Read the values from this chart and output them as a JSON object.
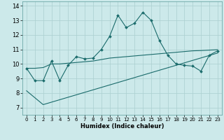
{
  "xlabel": "Humidex (Indice chaleur)",
  "xlim": [
    -0.5,
    23.5
  ],
  "ylim": [
    6.5,
    14.3
  ],
  "xticks": [
    0,
    1,
    2,
    3,
    4,
    5,
    6,
    7,
    8,
    9,
    10,
    11,
    12,
    13,
    14,
    15,
    16,
    17,
    18,
    19,
    20,
    21,
    22,
    23
  ],
  "yticks": [
    7,
    8,
    9,
    10,
    11,
    12,
    13,
    14
  ],
  "background_color": "#cce9ea",
  "grid_color": "#aacfcf",
  "line_color": "#1a6b6b",
  "main_x": [
    0,
    1,
    2,
    3,
    4,
    5,
    6,
    7,
    8,
    9,
    10,
    11,
    12,
    13,
    14,
    15,
    16,
    17,
    18,
    19,
    20,
    21,
    22,
    23
  ],
  "main_y": [
    9.7,
    8.85,
    8.85,
    10.2,
    8.85,
    9.9,
    10.5,
    10.35,
    10.4,
    11.0,
    11.9,
    13.35,
    12.5,
    12.8,
    13.55,
    13.0,
    11.6,
    10.6,
    10.0,
    9.9,
    9.85,
    9.5,
    10.6,
    10.9
  ],
  "line2_x": [
    0,
    1,
    2,
    3,
    4,
    5,
    6,
    7,
    8,
    9,
    10,
    11,
    12,
    13,
    14,
    15,
    16,
    17,
    18,
    19,
    20,
    21,
    22,
    23
  ],
  "line2_y": [
    9.7,
    9.7,
    9.75,
    10.0,
    10.0,
    10.05,
    10.1,
    10.15,
    10.2,
    10.3,
    10.4,
    10.45,
    10.5,
    10.55,
    10.6,
    10.65,
    10.7,
    10.75,
    10.8,
    10.85,
    10.9,
    10.92,
    10.95,
    10.98
  ],
  "line3_x": [
    0,
    2,
    23
  ],
  "line3_y": [
    8.15,
    7.2,
    10.75
  ]
}
